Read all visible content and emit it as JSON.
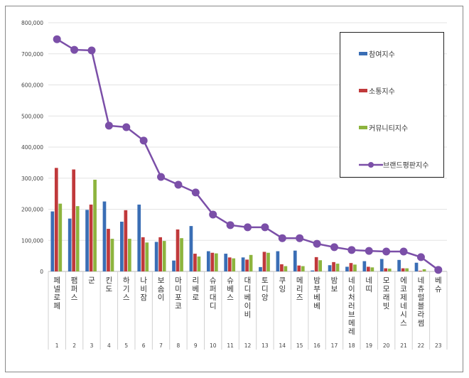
{
  "chart_data": {
    "type": "bar",
    "categories": [
      "페넬로페",
      "팸퍼스",
      "군",
      "킨도",
      "하기스",
      "나비잠",
      "보솜이",
      "마미포코",
      "리베로",
      "슈퍼대디",
      "슈베스",
      "대디베이비",
      "토디앙",
      "쿠잉",
      "메리즈",
      "밤부베베",
      "밤보",
      "네이처러브메레",
      "네띠",
      "모모래빗",
      "에코제네시스",
      "네츄럴블라썸",
      "베슈"
    ],
    "ranks": [
      "1",
      "2",
      "3",
      "4",
      "5",
      "6",
      "7",
      "8",
      "9",
      "10",
      "11",
      "12",
      "13",
      "14",
      "15",
      "16",
      "17",
      "18",
      "19",
      "20",
      "21",
      "22",
      "23"
    ],
    "series": [
      {
        "name": "참여지수",
        "type": "bar",
        "color": "#3a6eb5",
        "values": [
          193000,
          170000,
          198000,
          225000,
          160000,
          215000,
          95000,
          35000,
          146000,
          65000,
          57000,
          45000,
          14000,
          65000,
          67000,
          3000,
          20000,
          15000,
          33000,
          40000,
          37000,
          28000,
          0
        ]
      },
      {
        "name": "소통지수",
        "type": "bar",
        "color": "#c0393b",
        "values": [
          333000,
          328000,
          215000,
          137000,
          197000,
          110000,
          110000,
          135000,
          57000,
          60000,
          45000,
          38000,
          63000,
          23000,
          19000,
          46000,
          30000,
          27000,
          15000,
          10000,
          10000,
          2000,
          0
        ]
      },
      {
        "name": "커뮤니티지수",
        "type": "bar",
        "color": "#8db43e",
        "values": [
          218000,
          210000,
          295000,
          105000,
          105000,
          93000,
          98000,
          107000,
          48000,
          58000,
          42000,
          53000,
          60000,
          17000,
          17000,
          36000,
          25000,
          22000,
          13000,
          9000,
          10000,
          7000,
          0
        ]
      },
      {
        "name": "브랜드평판지수",
        "type": "line",
        "color": "#7b4fa8",
        "values": [
          747000,
          713000,
          711000,
          469000,
          464000,
          421000,
          304000,
          279000,
          254000,
          183000,
          149000,
          142000,
          142000,
          107000,
          107000,
          89000,
          78000,
          69000,
          66000,
          64000,
          64000,
          46000,
          5000
        ]
      }
    ],
    "yticks": [
      "0",
      "100,000",
      "200,000",
      "300,000",
      "400,000",
      "500,000",
      "600,000",
      "700,000",
      "800,000"
    ],
    "ylim": [
      0,
      800000
    ],
    "grid": true,
    "legend": "right"
  }
}
